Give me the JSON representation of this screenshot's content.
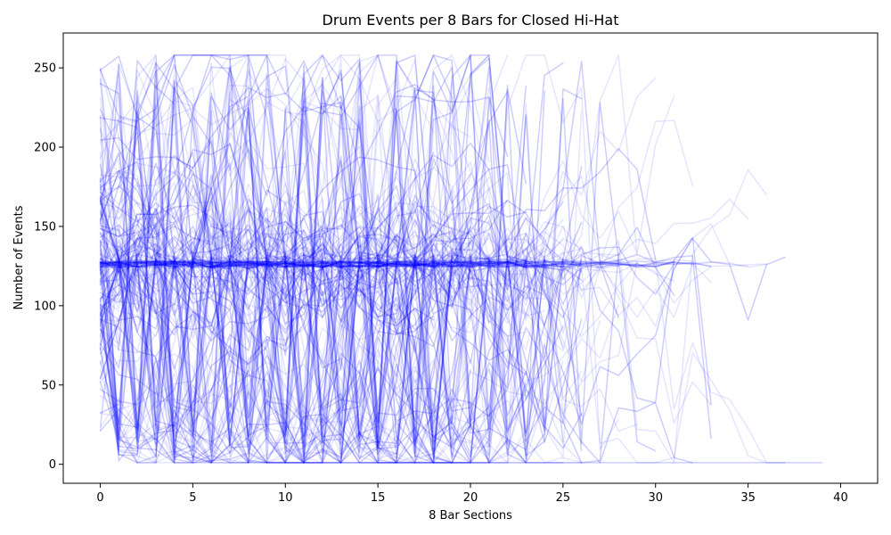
{
  "chart_data": {
    "type": "line",
    "title": "Drum Events per 8 Bars for Closed Hi-Hat",
    "xlabel": "8 Bar Sections",
    "ylabel": "Number of Events",
    "xlim": [
      -2,
      42
    ],
    "ylim": [
      -12,
      272
    ],
    "xticks": [
      0,
      5,
      10,
      15,
      20,
      25,
      30,
      35,
      40
    ],
    "yticks": [
      0,
      50,
      100,
      150,
      200,
      250
    ],
    "grid": false,
    "legend": "none",
    "line_color": "#0000ff",
    "line_alpha": 0.1,
    "series_count": 260,
    "series": [
      {
        "x": [
          0,
          1,
          2,
          3,
          4,
          5,
          6,
          7,
          8,
          9,
          10,
          11,
          12,
          13,
          14,
          15,
          16,
          17,
          18,
          19,
          20,
          21,
          22,
          23,
          24,
          25,
          26,
          27,
          28,
          29,
          30
        ],
        "values": [
          126,
          127,
          128,
          128,
          127,
          128,
          129,
          128,
          127,
          128,
          127,
          127,
          128,
          127,
          127,
          128,
          128,
          127,
          128,
          129,
          128,
          128,
          128,
          127,
          128,
          129,
          128,
          127,
          126,
          125,
          127
        ]
      },
      {
        "x": [
          0,
          1,
          2,
          3,
          4,
          5,
          6,
          7,
          8,
          9,
          10,
          11,
          12,
          13,
          14,
          15,
          16,
          17,
          18,
          19,
          20,
          21,
          22,
          23,
          24,
          25
        ],
        "values": [
          125,
          128,
          129,
          127,
          127,
          128,
          128,
          129,
          128,
          127,
          128,
          128,
          127,
          128,
          128,
          127,
          126,
          128,
          128,
          128,
          128,
          128,
          127,
          128,
          127,
          128
        ]
      },
      {
        "x": [
          0,
          1,
          2,
          3,
          4,
          5,
          6,
          7,
          8,
          9,
          10,
          11,
          12,
          13,
          14,
          15,
          16,
          17,
          18,
          19,
          20,
          21,
          22,
          23,
          24
        ],
        "values": [
          127,
          127,
          128,
          128,
          128,
          127,
          127,
          128,
          127,
          128,
          128,
          127,
          128,
          128,
          127,
          127,
          128,
          128,
          127,
          129,
          127,
          128,
          128,
          128,
          127
        ]
      },
      {
        "x": [
          0,
          1,
          2,
          3,
          4,
          5,
          6,
          7,
          8,
          9,
          10,
          11,
          12,
          13,
          14,
          15,
          16,
          17,
          18,
          19,
          20,
          21,
          22,
          23,
          24,
          25,
          26,
          27,
          28
        ],
        "values": [
          126,
          127,
          129,
          127,
          128,
          128,
          130,
          129,
          128,
          127,
          128,
          129,
          128,
          128,
          127,
          127,
          128,
          127,
          128,
          128,
          127,
          128,
          128,
          128,
          128,
          127,
          128,
          127,
          128
        ]
      },
      {
        "x": [
          0,
          1,
          2,
          3,
          4,
          5,
          6,
          7,
          8,
          9,
          10,
          11,
          12,
          13,
          14,
          15,
          16,
          17,
          18,
          19,
          20,
          21,
          22,
          23
        ],
        "values": [
          127,
          128,
          128,
          127,
          128,
          129,
          128,
          127,
          128,
          128,
          127,
          128,
          127,
          128,
          128,
          127,
          128,
          128,
          129,
          128,
          127,
          128,
          127,
          128
        ]
      },
      {
        "x": [
          0,
          1,
          2,
          3,
          4,
          5,
          6,
          7,
          8,
          9,
          10,
          11,
          12,
          13,
          14,
          15,
          16,
          17,
          18,
          19,
          20,
          21,
          22,
          23,
          24,
          25,
          26,
          27,
          28,
          29,
          30,
          31,
          32
        ],
        "values": [
          126,
          128,
          129,
          128,
          127,
          128,
          127,
          128,
          129,
          128,
          128,
          127,
          128,
          128,
          128,
          127,
          128,
          129,
          128,
          127,
          128,
          128,
          129,
          128,
          127,
          128,
          128,
          127,
          129,
          128,
          128,
          129,
          128
        ]
      }
    ]
  }
}
